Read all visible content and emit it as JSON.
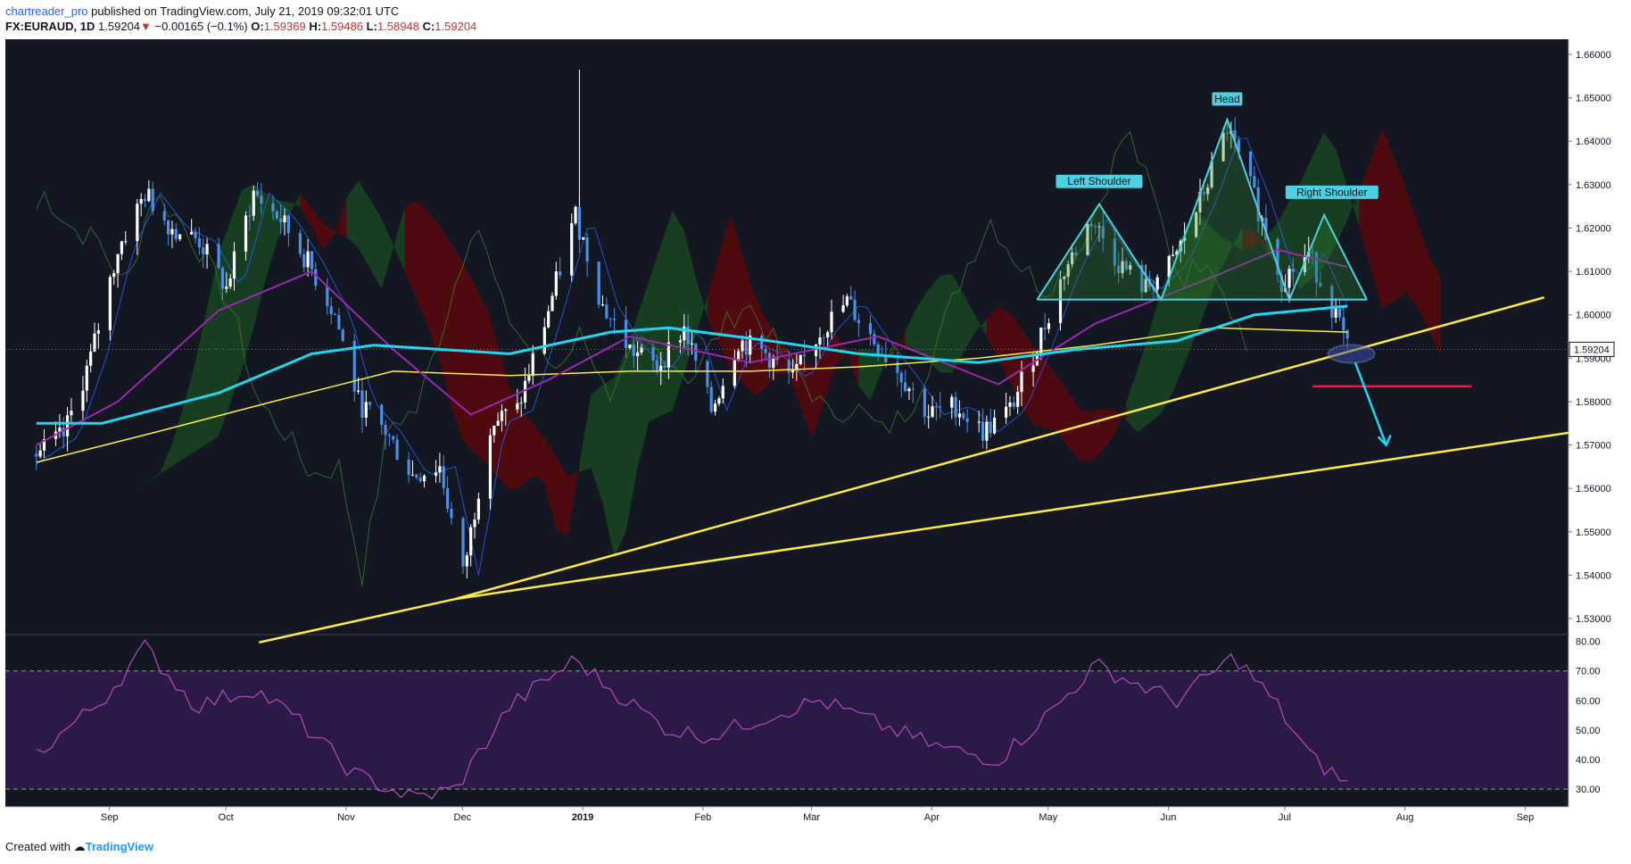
{
  "header": {
    "username": "chartreader_pro",
    "published_text": "published on TradingView.com, July 21, 2019 09:32:01 UTC",
    "symbol": "FX:EURAUD, 1D",
    "price": "1.59204",
    "down_arrow": "▼",
    "change": "−0.00165 (−0.1%)",
    "o_label": "O:",
    "o_value": "1.59369",
    "h_label": "H:",
    "h_value": "1.59486",
    "l_label": "L:",
    "l_value": "1.58948",
    "c_label": "C:",
    "c_value": "1.59204"
  },
  "footer": {
    "created_with": "Created with",
    "brand": "TradingView"
  },
  "colors": {
    "background": "#131722",
    "candle_up": "#ffffff",
    "candle_down": "#4a8ee6",
    "ema_slow": "#1fd7f0",
    "ema_fast": "#9c27b0",
    "ma_yellow": "#ffeb3b",
    "kumo_bull": "#1b5e20",
    "kumo_bear": "#7f0000",
    "rsi_line": "#ab47bc",
    "rsi_band": "#2a1a45",
    "pattern": "#4dd0e1",
    "target_line": "#ff1744"
  },
  "chart_data": {
    "type": "candlestick",
    "symbol": "FX:EURAUD",
    "timeframe": "1D",
    "x_axis_labels": [
      "Sep",
      "Oct",
      "Nov",
      "Dec",
      "2019",
      "Feb",
      "Mar",
      "Apr",
      "May",
      "Jun",
      "Jul",
      "Aug",
      "Sep"
    ],
    "x_axis_dates": [
      "2018-09-01",
      "2018-10-01",
      "2018-11-01",
      "2018-12-01",
      "2019-01-01",
      "2019-02-01",
      "2019-03-01",
      "2019-04-01",
      "2019-05-01",
      "2019-06-01",
      "2019-07-01",
      "2019-08-01",
      "2019-09-01"
    ],
    "price_axis_labels": [
      "1.66000",
      "1.65000",
      "1.64000",
      "1.63000",
      "1.62000",
      "1.61000",
      "1.60000",
      "1.59000",
      "1.58000",
      "1.57000",
      "1.56000",
      "1.55000",
      "1.54000",
      "1.53000"
    ],
    "ylim": [
      1.5265,
      1.6635
    ],
    "last_price": "1.59204",
    "close_path": [
      [
        "2018-08-15",
        1.568
      ],
      [
        "2018-08-22",
        1.572
      ],
      [
        "2018-08-29",
        1.59
      ],
      [
        "2018-09-05",
        1.615
      ],
      [
        "2018-09-12",
        1.628
      ],
      [
        "2018-09-19",
        1.62
      ],
      [
        "2018-09-26",
        1.617
      ],
      [
        "2018-10-03",
        1.606
      ],
      [
        "2018-10-10",
        1.628
      ],
      [
        "2018-10-17",
        1.622
      ],
      [
        "2018-10-24",
        1.612
      ],
      [
        "2018-10-31",
        1.6
      ],
      [
        "2018-11-06",
        1.58
      ],
      [
        "2018-11-13",
        1.573
      ],
      [
        "2018-11-20",
        1.563
      ],
      [
        "2018-11-27",
        1.565
      ],
      [
        "2018-12-03",
        1.54
      ],
      [
        "2018-12-10",
        1.575
      ],
      [
        "2018-12-17",
        1.578
      ],
      [
        "2018-12-24",
        1.598
      ],
      [
        "2019-01-01",
        1.623
      ],
      [
        "2019-01-08",
        1.602
      ],
      [
        "2019-01-15",
        1.592
      ],
      [
        "2019-01-22",
        1.588
      ],
      [
        "2019-01-29",
        1.597
      ],
      [
        "2019-02-05",
        1.578
      ],
      [
        "2019-02-12",
        1.594
      ],
      [
        "2019-02-19",
        1.591
      ],
      [
        "2019-02-26",
        1.585
      ],
      [
        "2019-03-05",
        1.596
      ],
      [
        "2019-03-12",
        1.603
      ],
      [
        "2019-03-19",
        1.594
      ],
      [
        "2019-03-26",
        1.586
      ],
      [
        "2019-04-02",
        1.577
      ],
      [
        "2019-04-09",
        1.579
      ],
      [
        "2019-04-16",
        1.573
      ],
      [
        "2019-04-23",
        1.578
      ],
      [
        "2019-04-30",
        1.593
      ],
      [
        "2019-05-07",
        1.61
      ],
      [
        "2019-05-14",
        1.622
      ],
      [
        "2019-05-21",
        1.612
      ],
      [
        "2019-05-28",
        1.606
      ],
      [
        "2019-06-04",
        1.612
      ],
      [
        "2019-06-11",
        1.626
      ],
      [
        "2019-06-18",
        1.643
      ],
      [
        "2019-06-25",
        1.627
      ],
      [
        "2019-07-02",
        1.608
      ],
      [
        "2019-07-09",
        1.614
      ],
      [
        "2019-07-16",
        1.6
      ],
      [
        "2019-07-19",
        1.592
      ]
    ],
    "indicators": {
      "ema_slow_cyan": [
        [
          "2018-08-15",
          1.575
        ],
        [
          "2018-09-01",
          1.575
        ],
        [
          "2018-10-01",
          1.582
        ],
        [
          "2018-10-25",
          1.591
        ],
        [
          "2018-11-10",
          1.593
        ],
        [
          "2018-12-15",
          1.591
        ],
        [
          "2019-01-10",
          1.596
        ],
        [
          "2019-01-25",
          1.597
        ],
        [
          "2019-02-20",
          1.594
        ],
        [
          "2019-03-15",
          1.591
        ],
        [
          "2019-04-15",
          1.589
        ],
        [
          "2019-05-10",
          1.592
        ],
        [
          "2019-06-05",
          1.594
        ],
        [
          "2019-06-25",
          1.6
        ],
        [
          "2019-07-19",
          1.602
        ]
      ],
      "ema_fast_purple": [
        [
          "2018-08-15",
          1.57
        ],
        [
          "2018-09-05",
          1.58
        ],
        [
          "2018-10-01",
          1.601
        ],
        [
          "2018-10-25",
          1.61
        ],
        [
          "2018-11-15",
          1.592
        ],
        [
          "2018-12-05",
          1.577
        ],
        [
          "2018-12-25",
          1.585
        ],
        [
          "2019-01-15",
          1.595
        ],
        [
          "2019-02-15",
          1.589
        ],
        [
          "2019-03-20",
          1.595
        ],
        [
          "2019-04-20",
          1.584
        ],
        [
          "2019-05-15",
          1.598
        ],
        [
          "2019-06-15",
          1.609
        ],
        [
          "2019-07-01",
          1.615
        ],
        [
          "2019-07-19",
          1.611
        ]
      ],
      "ma_yellow": [
        [
          "2018-08-15",
          1.566
        ],
        [
          "2018-09-15",
          1.573
        ],
        [
          "2018-10-15",
          1.58
        ],
        [
          "2018-11-15",
          1.587
        ],
        [
          "2018-12-15",
          1.586
        ],
        [
          "2019-01-15",
          1.587
        ],
        [
          "2019-02-15",
          1.587
        ],
        [
          "2019-03-15",
          1.588
        ],
        [
          "2019-04-15",
          1.59
        ],
        [
          "2019-05-15",
          1.593
        ],
        [
          "2019-06-15",
          1.597
        ],
        [
          "2019-07-19",
          1.596
        ]
      ],
      "rsi": {
        "axis_labels": [
          "80.00",
          "70.00",
          "60.00",
          "50.00",
          "40.00",
          "30.00"
        ],
        "ylim": [
          24,
          82
        ],
        "overbought": 70,
        "oversold": 30,
        "values": [
          [
            "2018-08-15",
            42
          ],
          [
            "2018-09-01",
            60
          ],
          [
            "2018-09-12",
            78
          ],
          [
            "2018-09-25",
            58
          ],
          [
            "2018-10-10",
            64
          ],
          [
            "2018-10-20",
            55
          ],
          [
            "2018-11-05",
            35
          ],
          [
            "2018-11-20",
            27
          ],
          [
            "2018-12-01",
            30
          ],
          [
            "2018-12-15",
            58
          ],
          [
            "2019-01-01",
            74
          ],
          [
            "2019-01-10",
            64
          ],
          [
            "2019-01-25",
            50
          ],
          [
            "2019-02-05",
            48
          ],
          [
            "2019-02-20",
            55
          ],
          [
            "2019-03-05",
            60
          ],
          [
            "2019-03-20",
            52
          ],
          [
            "2019-04-05",
            44
          ],
          [
            "2019-04-20",
            40
          ],
          [
            "2019-05-05",
            58
          ],
          [
            "2019-05-15",
            72
          ],
          [
            "2019-05-25",
            66
          ],
          [
            "2019-06-05",
            60
          ],
          [
            "2019-06-20",
            75
          ],
          [
            "2019-07-01",
            58
          ],
          [
            "2019-07-10",
            40
          ],
          [
            "2019-07-19",
            32
          ]
        ]
      }
    },
    "trendlines": [
      {
        "name": "primary",
        "points": [
          [
            "2018-12-01",
            1.5345
          ],
          [
            "2019-07-19",
            1.5905
          ]
        ],
        "extended_to": [
          "2019-07-26",
          1.604
        ]
      },
      {
        "name": "secondary",
        "points": [
          [
            "2018-08-12",
            1.523
          ],
          [
            "2019-09-12",
            1.573
          ]
        ]
      }
    ],
    "pattern": {
      "type": "head-and-shoulders",
      "labels": [
        "Left Shoulder",
        "Head",
        "Right Shoulder"
      ],
      "neckline": 1.6035,
      "target": 1.5835,
      "breakout_marker": "1.5910",
      "projection_arrow_end": 1.57
    }
  }
}
